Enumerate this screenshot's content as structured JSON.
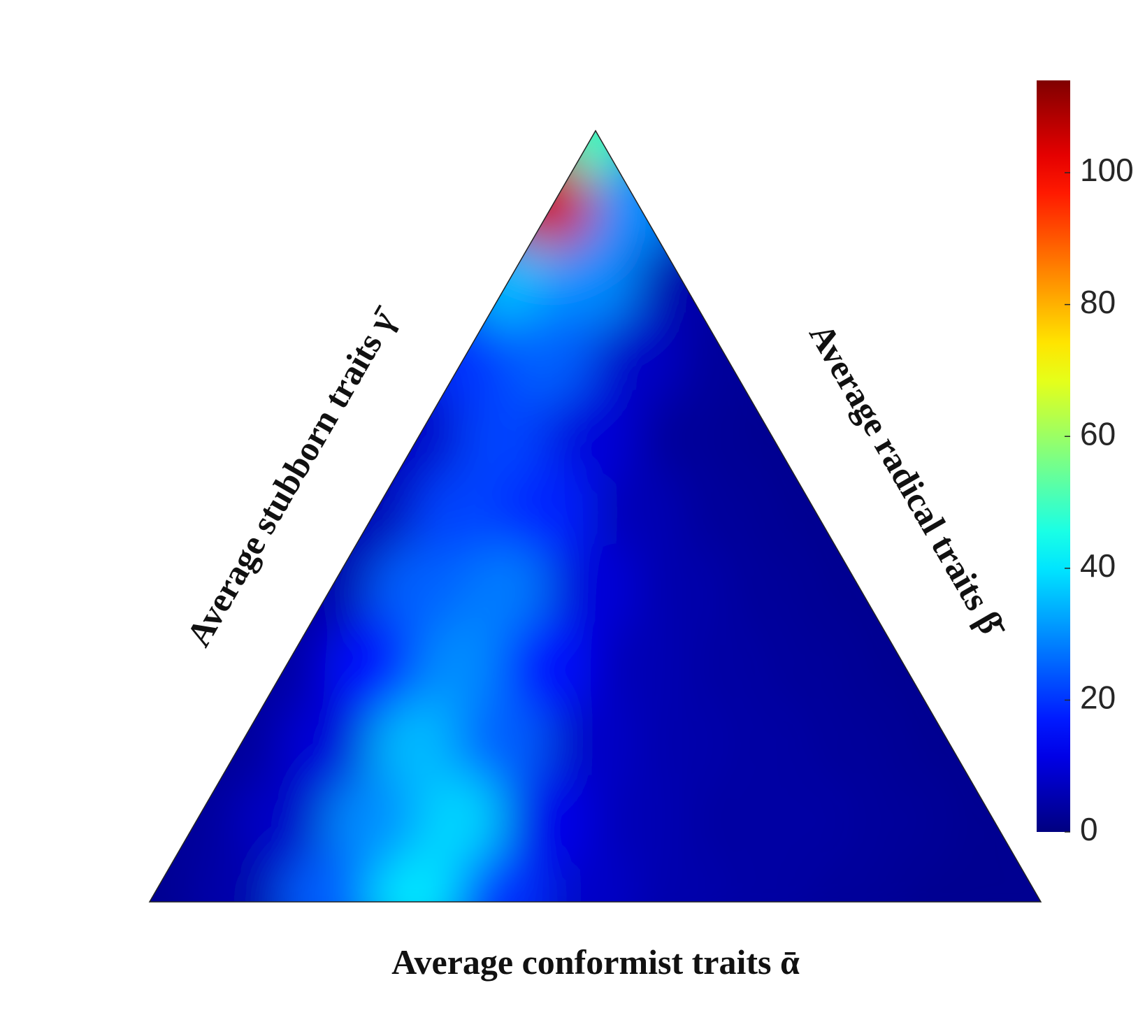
{
  "chart_data": {
    "type": "ternary_heatmap",
    "xlabel": "Average conformist traits ᾱ",
    "left_label": "Average stubborn traits γ̄",
    "right_label": "Average radical traits β̄",
    "colormap": "jet",
    "values": [
      [
        50
      ],
      [
        105,
        30
      ],
      [
        35,
        30,
        5
      ],
      [
        20,
        25,
        8,
        3
      ],
      [
        8,
        22,
        10,
        3,
        2
      ],
      [
        6,
        22,
        18,
        6,
        3,
        2
      ],
      [
        5,
        25,
        28,
        10,
        5,
        3,
        2
      ],
      [
        4,
        15,
        30,
        15,
        6,
        4,
        3,
        2
      ],
      [
        3,
        10,
        35,
        25,
        8,
        5,
        4,
        3,
        2
      ],
      [
        3,
        8,
        30,
        38,
        12,
        6,
        4,
        4,
        3,
        2
      ],
      [
        2,
        5,
        25,
        40,
        20,
        8,
        5,
        4,
        3,
        2,
        2
      ]
    ],
    "clim": [
      0,
      114
    ],
    "cticks": [
      0,
      20,
      40,
      60,
      80,
      100
    ]
  }
}
